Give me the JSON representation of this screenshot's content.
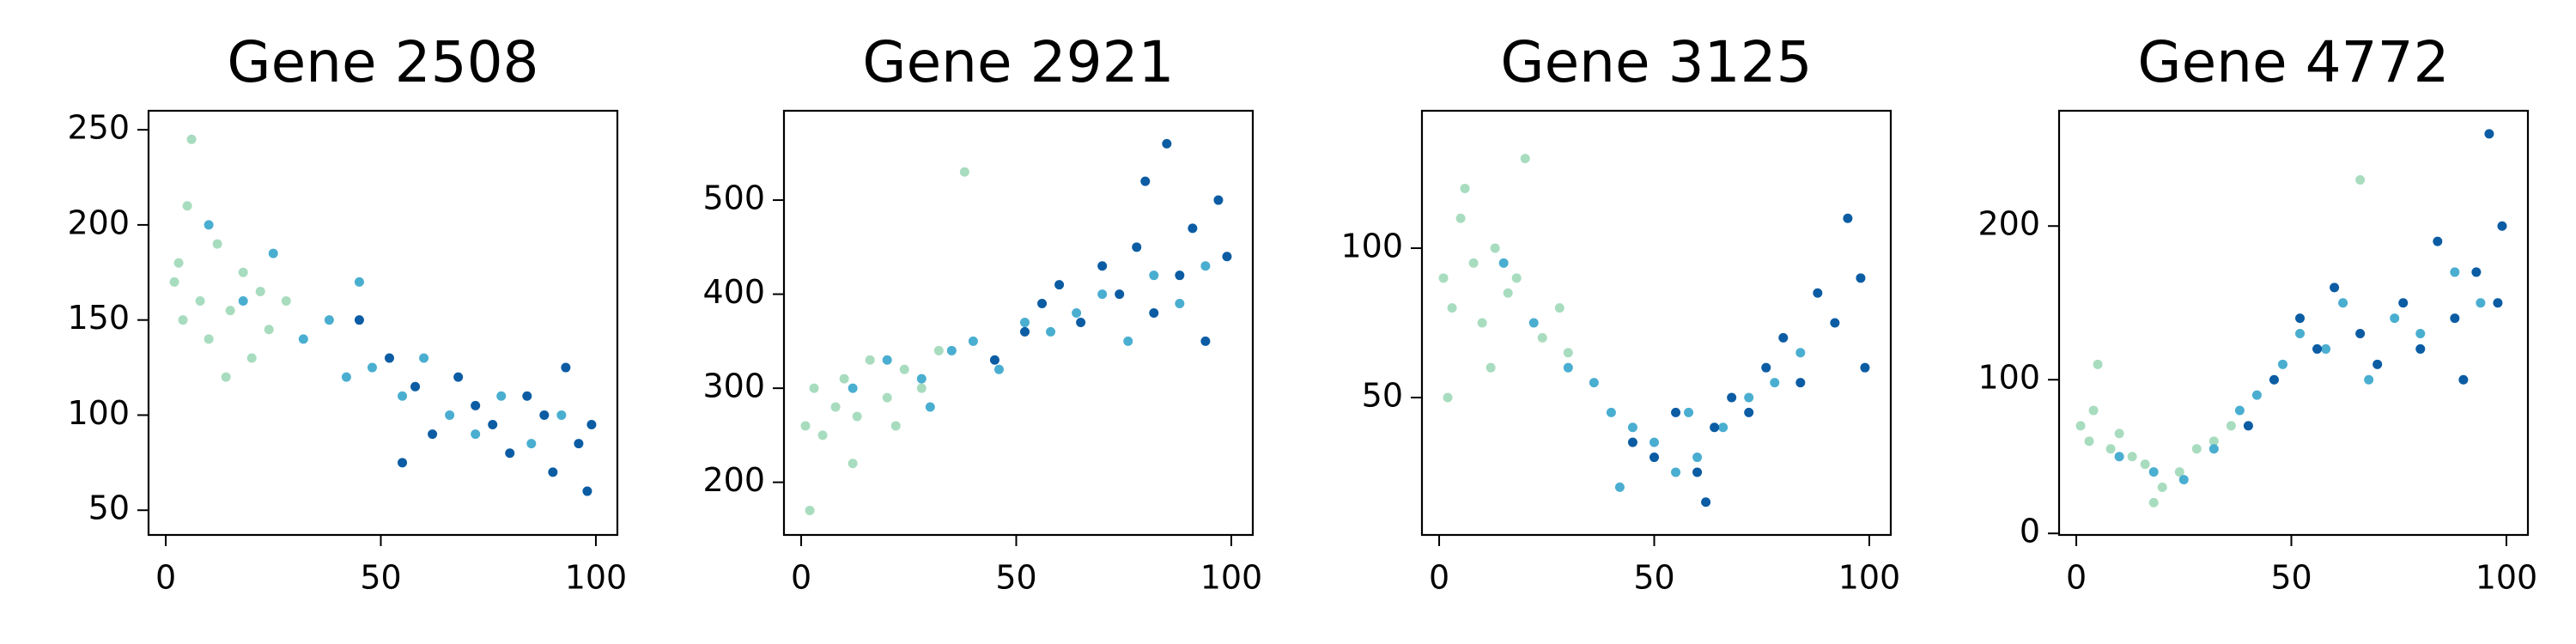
{
  "chart_data": [
    {
      "type": "scatter",
      "title": "Gene 2508",
      "xlim": [
        -4,
        105
      ],
      "ylim": [
        37,
        260
      ],
      "xticks": [
        0,
        50,
        100
      ],
      "yticks": [
        50,
        100,
        150,
        200,
        250
      ],
      "series": [
        {
          "color": "#a8dcbf",
          "x": [
            2,
            4,
            6,
            8,
            10,
            12,
            15,
            18,
            20,
            24,
            28,
            5,
            14,
            22,
            3
          ],
          "values": [
            170,
            150,
            245,
            160,
            140,
            190,
            155,
            175,
            130,
            145,
            160,
            210,
            120,
            165,
            180
          ]
        },
        {
          "color": "#4aaed0",
          "x": [
            10,
            18,
            25,
            32,
            38,
            42,
            48,
            55,
            60,
            66,
            72,
            78,
            85,
            92,
            45
          ],
          "values": [
            200,
            160,
            185,
            140,
            150,
            120,
            125,
            110,
            130,
            100,
            90,
            110,
            85,
            100,
            170
          ]
        },
        {
          "color": "#0b5ca3",
          "x": [
            45,
            52,
            58,
            62,
            68,
            72,
            76,
            80,
            84,
            88,
            90,
            93,
            96,
            98,
            99,
            55
          ],
          "values": [
            150,
            130,
            115,
            90,
            120,
            105,
            95,
            80,
            110,
            100,
            70,
            125,
            85,
            60,
            95,
            75
          ]
        }
      ]
    },
    {
      "type": "scatter",
      "title": "Gene 2921",
      "xlim": [
        -4,
        105
      ],
      "ylim": [
        144,
        595
      ],
      "xticks": [
        0,
        50,
        100
      ],
      "yticks": [
        200,
        300,
        400,
        500
      ],
      "series": [
        {
          "color": "#a8dcbf",
          "x": [
            1,
            3,
            5,
            8,
            10,
            13,
            16,
            20,
            24,
            28,
            32,
            2,
            12,
            38,
            22
          ],
          "values": [
            260,
            300,
            250,
            280,
            310,
            270,
            330,
            290,
            320,
            300,
            340,
            170,
            220,
            530,
            260
          ]
        },
        {
          "color": "#4aaed0",
          "x": [
            12,
            20,
            28,
            35,
            40,
            46,
            52,
            58,
            64,
            70,
            76,
            82,
            88,
            94,
            30
          ],
          "values": [
            300,
            330,
            310,
            340,
            350,
            320,
            370,
            360,
            380,
            400,
            350,
            420,
            390,
            430,
            280
          ]
        },
        {
          "color": "#0b5ca3",
          "x": [
            45,
            52,
            56,
            60,
            65,
            70,
            74,
            78,
            82,
            85,
            88,
            91,
            94,
            97,
            99,
            80
          ],
          "values": [
            330,
            360,
            390,
            410,
            370,
            430,
            400,
            450,
            380,
            560,
            420,
            470,
            350,
            500,
            440,
            520
          ]
        }
      ]
    },
    {
      "type": "scatter",
      "title": "Gene 3125",
      "xlim": [
        -4,
        105
      ],
      "ylim": [
        4,
        146
      ],
      "xticks": [
        0,
        50,
        100
      ],
      "yticks": [
        50,
        100
      ],
      "series": [
        {
          "color": "#a8dcbf",
          "x": [
            1,
            3,
            5,
            8,
            10,
            13,
            16,
            20,
            24,
            28,
            12,
            6,
            18,
            2,
            30
          ],
          "values": [
            90,
            80,
            110,
            95,
            75,
            100,
            85,
            130,
            70,
            80,
            60,
            120,
            90,
            50,
            65
          ]
        },
        {
          "color": "#4aaed0",
          "x": [
            15,
            22,
            30,
            36,
            40,
            45,
            50,
            55,
            60,
            66,
            72,
            78,
            84,
            42,
            58
          ],
          "values": [
            95,
            75,
            60,
            55,
            45,
            40,
            35,
            25,
            30,
            40,
            50,
            55,
            65,
            20,
            45
          ]
        },
        {
          "color": "#0b5ca3",
          "x": [
            45,
            50,
            55,
            60,
            64,
            68,
            72,
            76,
            80,
            84,
            88,
            92,
            95,
            98,
            99,
            62
          ],
          "values": [
            35,
            30,
            45,
            25,
            40,
            50,
            45,
            60,
            70,
            55,
            85,
            75,
            110,
            90,
            60,
            15
          ]
        }
      ]
    },
    {
      "type": "scatter",
      "title": "Gene 4772",
      "xlim": [
        -4,
        105
      ],
      "ylim": [
        -1,
        275
      ],
      "xticks": [
        0,
        50,
        100
      ],
      "yticks": [
        0,
        100,
        200
      ],
      "series": [
        {
          "color": "#a8dcbf",
          "x": [
            1,
            3,
            5,
            8,
            10,
            13,
            16,
            20,
            24,
            28,
            32,
            4,
            66,
            18,
            36
          ],
          "values": [
            70,
            60,
            110,
            55,
            65,
            50,
            45,
            30,
            40,
            55,
            60,
            80,
            230,
            20,
            70
          ]
        },
        {
          "color": "#4aaed0",
          "x": [
            10,
            18,
            25,
            32,
            38,
            42,
            48,
            52,
            58,
            62,
            68,
            74,
            80,
            88,
            94
          ],
          "values": [
            50,
            40,
            35,
            55,
            80,
            90,
            110,
            130,
            120,
            150,
            100,
            140,
            130,
            170,
            150
          ]
        },
        {
          "color": "#0b5ca3",
          "x": [
            40,
            46,
            52,
            56,
            60,
            66,
            70,
            76,
            80,
            84,
            88,
            90,
            93,
            96,
            98,
            99
          ],
          "values": [
            70,
            100,
            140,
            120,
            160,
            130,
            110,
            150,
            120,
            190,
            140,
            100,
            170,
            260,
            150,
            200
          ]
        }
      ]
    }
  ]
}
